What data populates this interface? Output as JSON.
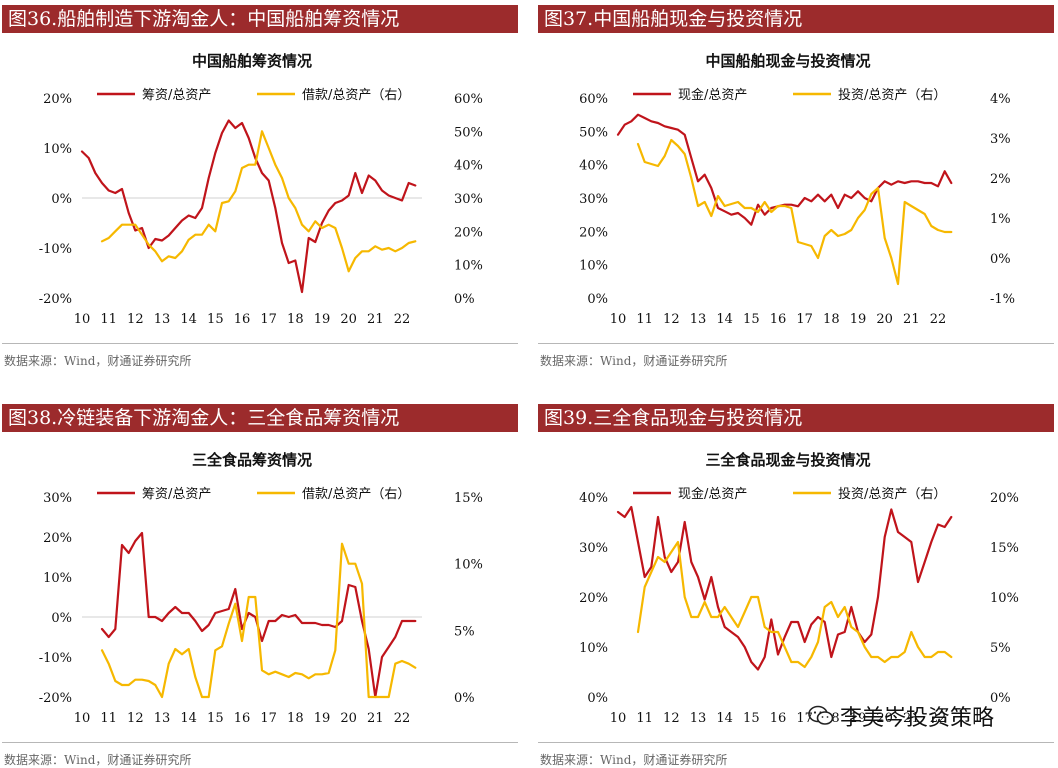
{
  "colors": {
    "header_bg": "#9c2b2c",
    "series_red": "#c0141b",
    "series_yellow": "#f6b800"
  },
  "panels": [
    {
      "header": "图36.船舶制造下游淘金人：中国船舶筹资情况",
      "source": "数据来源：Wind，财通证券研究所"
    },
    {
      "header": "图37.中国船舶现金与投资情况",
      "source": "数据来源：Wind，财通证券研究所"
    },
    {
      "header": "图38.冷链装备下游淘金人：三全食品筹资情况",
      "source": "数据来源：Wind，财通证券研究所"
    },
    {
      "header": "图39.三全食品现金与投资情况",
      "source": "数据来源：Wind，财通证券研究所"
    }
  ],
  "watermark": "李美岑投资策略",
  "chart_data": [
    {
      "type": "line",
      "title": "中国船舶筹资情况",
      "x_ticks": [
        "10",
        "11",
        "12",
        "13",
        "14",
        "15",
        "16",
        "17",
        "18",
        "19",
        "20",
        "21",
        "22"
      ],
      "x_range": [
        10,
        22.75
      ],
      "y_left": {
        "range": [
          -20,
          20
        ],
        "ticks": [
          "20%",
          "10%",
          "0%",
          "-10%",
          "-20%"
        ]
      },
      "y_right": {
        "range": [
          0,
          60
        ],
        "ticks": [
          "60%",
          "50%",
          "40%",
          "30%",
          "20%",
          "10%",
          "0%"
        ]
      },
      "series": [
        {
          "name": "筹资/总资产",
          "axis": "left",
          "color": "#c0141b",
          "x": [
            10,
            10.25,
            10.5,
            10.75,
            11,
            11.25,
            11.5,
            11.75,
            12,
            12.25,
            12.5,
            12.75,
            13,
            13.25,
            13.5,
            13.75,
            14,
            14.25,
            14.5,
            14.75,
            15,
            15.25,
            15.5,
            15.75,
            16,
            16.25,
            16.5,
            16.75,
            17,
            17.25,
            17.5,
            17.75,
            18,
            18.25,
            18.5,
            18.75,
            19,
            19.25,
            19.5,
            19.75,
            20,
            20.25,
            20.5,
            20.75,
            21,
            21.25,
            21.5,
            21.75,
            22,
            22.25,
            22.5
          ],
          "values": [
            9.3,
            8,
            5,
            3,
            1.5,
            1,
            1.8,
            -3,
            -6.5,
            -6,
            -10,
            -8.2,
            -8.5,
            -7.5,
            -6,
            -4.5,
            -3.5,
            -4,
            -2,
            4,
            9,
            13,
            15.5,
            14,
            15,
            12,
            8,
            5,
            3.5,
            -2,
            -9,
            -13,
            -12.5,
            -18.8,
            -8,
            -8.8,
            -5,
            -2.5,
            -1,
            -0.5,
            0.5,
            5,
            1,
            4.5,
            3.5,
            1.5,
            0.5,
            0,
            -0.5,
            3,
            2.5
          ]
        },
        {
          "name": "借款/总资产（右）",
          "axis": "right",
          "color": "#f6b800",
          "x": [
            10.75,
            11,
            11.25,
            11.5,
            11.75,
            12,
            12.25,
            12.5,
            12.75,
            13,
            13.25,
            13.5,
            13.75,
            14,
            14.25,
            14.5,
            14.75,
            15,
            15.25,
            15.5,
            15.75,
            16,
            16.25,
            16.5,
            16.75,
            17,
            17.25,
            17.5,
            17.75,
            18,
            18.25,
            18.5,
            18.75,
            19,
            19.25,
            19.5,
            19.75,
            20,
            20.25,
            20.5,
            20.75,
            21,
            21.25,
            21.5,
            21.75,
            22,
            22.25,
            22.5
          ],
          "values": [
            17,
            18,
            20,
            22,
            22,
            22,
            19,
            16,
            14,
            11,
            12.5,
            12,
            14,
            17.5,
            19,
            19,
            22,
            20,
            28.5,
            29,
            32,
            39,
            40,
            40,
            50,
            45,
            40,
            36,
            30,
            27,
            22,
            20,
            23,
            21,
            22,
            21,
            15,
            8,
            12,
            14,
            14,
            15.5,
            14.5,
            15,
            14,
            15,
            16.5,
            17
          ]
        }
      ]
    },
    {
      "type": "line",
      "title": "中国船舶现金与投资情况",
      "x_ticks": [
        "10",
        "11",
        "12",
        "13",
        "14",
        "15",
        "16",
        "17",
        "18",
        "19",
        "20",
        "21",
        "22"
      ],
      "x_range": [
        10,
        22.75
      ],
      "y_left": {
        "range": [
          0,
          60
        ],
        "ticks": [
          "60%",
          "50%",
          "40%",
          "30%",
          "20%",
          "10%",
          "0%"
        ]
      },
      "y_right": {
        "range": [
          -1,
          4
        ],
        "ticks": [
          "4%",
          "3%",
          "2%",
          "1%",
          "0%",
          "-1%"
        ]
      },
      "series": [
        {
          "name": "现金/总资产",
          "axis": "left",
          "color": "#c0141b",
          "x": [
            10,
            10.25,
            10.5,
            10.75,
            11,
            11.25,
            11.5,
            11.75,
            12,
            12.25,
            12.5,
            12.75,
            13,
            13.25,
            13.5,
            13.75,
            14,
            14.25,
            14.5,
            14.75,
            15,
            15.25,
            15.5,
            15.75,
            16,
            16.25,
            16.5,
            16.75,
            17,
            17.25,
            17.5,
            17.75,
            18,
            18.25,
            18.5,
            18.75,
            19,
            19.25,
            19.5,
            19.75,
            20,
            20.25,
            20.5,
            20.75,
            21,
            21.25,
            21.5,
            21.75,
            22,
            22.25,
            22.5
          ],
          "values": [
            49,
            52,
            53,
            55,
            54,
            53,
            52.5,
            51.5,
            51,
            50.5,
            49,
            42,
            35,
            37,
            33,
            27,
            26,
            25,
            25.5,
            24,
            22,
            28,
            25,
            27,
            27.5,
            28,
            28,
            27.5,
            30,
            29,
            31,
            29,
            31,
            27,
            31,
            30,
            32,
            30,
            29,
            33,
            35,
            34,
            35,
            34.5,
            35,
            35,
            34.5,
            34.5,
            33.5,
            38,
            34.5
          ]
        },
        {
          "name": "投资/总资产（右）",
          "axis": "right",
          "color": "#f6b800",
          "x": [
            10.75,
            11,
            11.25,
            11.5,
            11.75,
            12,
            12.25,
            12.5,
            12.75,
            13,
            13.25,
            13.5,
            13.75,
            14,
            14.25,
            14.5,
            14.75,
            15,
            15.25,
            15.5,
            15.75,
            16,
            16.25,
            16.5,
            16.75,
            17,
            17.25,
            17.5,
            17.75,
            18,
            18.25,
            18.5,
            18.75,
            19,
            19.25,
            19.5,
            19.75,
            20,
            20.25,
            20.5,
            20.75,
            21,
            21.25,
            21.5,
            21.75,
            22,
            22.25,
            22.5
          ],
          "values": [
            2.85,
            2.4,
            2.35,
            2.3,
            2.55,
            2.95,
            2.8,
            2.6,
            2,
            1.3,
            1.4,
            1.05,
            1.55,
            1.3,
            1.35,
            1.4,
            1.25,
            1.25,
            1.15,
            1.4,
            1.15,
            1.3,
            1.3,
            1.25,
            0.4,
            0.35,
            0.3,
            0,
            0.55,
            0.7,
            0.55,
            0.6,
            0.7,
            1.0,
            1.2,
            1.6,
            1.75,
            0.5,
            0,
            -0.65,
            1.4,
            1.3,
            1.2,
            1.1,
            0.8,
            0.7,
            0.65,
            0.65
          ]
        }
      ]
    },
    {
      "type": "line",
      "title": "三全食品筹资情况",
      "x_ticks": [
        "10",
        "11",
        "12",
        "13",
        "14",
        "15",
        "16",
        "17",
        "18",
        "19",
        "20",
        "21",
        "22"
      ],
      "x_range": [
        10,
        22.75
      ],
      "y_left": {
        "range": [
          -20,
          30
        ],
        "ticks": [
          "30%",
          "20%",
          "10%",
          "0%",
          "-10%",
          "-20%"
        ]
      },
      "y_right": {
        "range": [
          0,
          15
        ],
        "ticks": [
          "15%",
          "10%",
          "5%",
          "0%"
        ]
      },
      "series": [
        {
          "name": "筹资/总资产",
          "axis": "left",
          "color": "#c0141b",
          "x": [
            10.75,
            11,
            11.25,
            11.5,
            11.75,
            12,
            12.25,
            12.5,
            12.75,
            13,
            13.25,
            13.5,
            13.75,
            14,
            14.25,
            14.5,
            14.75,
            15,
            15.25,
            15.5,
            15.75,
            16,
            16.25,
            16.5,
            16.75,
            17,
            17.25,
            17.5,
            17.75,
            18,
            18.25,
            18.5,
            18.75,
            19,
            19.25,
            19.5,
            19.75,
            20,
            20.25,
            20.5,
            20.75,
            21,
            21.25,
            21.5,
            21.75,
            22,
            22.25,
            22.5
          ],
          "values": [
            -3,
            -5,
            -3,
            18,
            16,
            19,
            21,
            0,
            0,
            -1,
            1,
            2.5,
            1,
            1,
            -1,
            -3.5,
            -2,
            1,
            1.5,
            2,
            7,
            -3,
            1,
            0,
            -6,
            -1,
            -1,
            0.5,
            0,
            0.5,
            -1.5,
            -1.5,
            -1.5,
            -2,
            -2,
            -2.5,
            -1,
            8,
            7.5,
            -1,
            -8,
            -20,
            -10,
            -7.5,
            -5,
            -1,
            -1,
            -1
          ]
        },
        {
          "name": "借款/总资产（右）",
          "axis": "right",
          "color": "#f6b800",
          "x": [
            10.75,
            11,
            11.25,
            11.5,
            11.75,
            12,
            12.25,
            12.5,
            12.75,
            13,
            13.25,
            13.5,
            13.75,
            14,
            14.25,
            14.5,
            14.75,
            15,
            15.25,
            15.5,
            15.75,
            16,
            16.25,
            16.5,
            16.75,
            17,
            17.25,
            17.5,
            17.75,
            18,
            18.25,
            18.5,
            18.75,
            19,
            19.25,
            19.5,
            19.75,
            20,
            20.25,
            20.5,
            20.75,
            21,
            21.25,
            21.5,
            21.75,
            22,
            22.25,
            22.5
          ],
          "values": [
            3.5,
            2.5,
            1.2,
            0.9,
            0.9,
            1.3,
            1.3,
            1.2,
            0.9,
            0,
            2.5,
            3.6,
            3.2,
            3.6,
            1.5,
            0,
            0,
            3.5,
            3.8,
            5.5,
            7,
            4.2,
            7.5,
            7.5,
            2,
            1.7,
            1.9,
            1.7,
            1.5,
            1.8,
            1.7,
            1.4,
            1.7,
            1.7,
            1.8,
            3.5,
            11.5,
            10,
            10,
            8.5,
            0,
            0,
            0,
            0,
            2.5,
            2.7,
            2.5,
            2.2
          ]
        }
      ]
    },
    {
      "type": "line",
      "title": "三全食品现金与投资情况",
      "x_ticks": [
        "10",
        "11",
        "12",
        "13",
        "14",
        "15",
        "16",
        "17",
        "18",
        "19",
        "20",
        "21",
        "22"
      ],
      "x_range": [
        10,
        22.75
      ],
      "y_left": {
        "range": [
          0,
          40
        ],
        "ticks": [
          "40%",
          "30%",
          "20%",
          "10%",
          "0%"
        ]
      },
      "y_right": {
        "range": [
          0,
          20
        ],
        "ticks": [
          "20%",
          "15%",
          "10%",
          "5%",
          "0%"
        ]
      },
      "series": [
        {
          "name": "现金/总资产",
          "axis": "left",
          "color": "#c0141b",
          "x": [
            10,
            10.25,
            10.5,
            10.75,
            11,
            11.25,
            11.5,
            11.75,
            12,
            12.25,
            12.5,
            12.75,
            13,
            13.25,
            13.5,
            13.75,
            14,
            14.25,
            14.5,
            14.75,
            15,
            15.25,
            15.5,
            15.75,
            16,
            16.25,
            16.5,
            16.75,
            17,
            17.25,
            17.5,
            17.75,
            18,
            18.25,
            18.5,
            18.75,
            19,
            19.25,
            19.5,
            19.75,
            20,
            20.25,
            20.5,
            20.75,
            21,
            21.25,
            21.5,
            21.75,
            22,
            22.25,
            22.5
          ],
          "values": [
            37,
            36,
            38,
            31,
            24,
            26,
            36,
            28,
            25,
            27,
            35,
            27,
            24,
            19.5,
            24,
            18,
            14,
            13,
            12,
            10,
            7,
            5.5,
            8,
            15.5,
            8.5,
            12,
            15,
            15,
            11,
            14.5,
            16,
            15,
            8,
            12.5,
            13,
            18,
            13,
            11,
            12.5,
            20,
            32,
            37.5,
            33,
            32,
            31,
            23,
            27,
            31,
            34.5,
            34,
            36
          ]
        },
        {
          "name": "投资/总资产（右）",
          "axis": "right",
          "color": "#f6b800",
          "x": [
            10.75,
            11,
            11.25,
            11.5,
            11.75,
            12,
            12.25,
            12.5,
            12.75,
            13,
            13.25,
            13.5,
            13.75,
            14,
            14.25,
            14.5,
            14.75,
            15,
            15.25,
            15.5,
            15.75,
            16,
            16.25,
            16.5,
            16.75,
            17,
            17.25,
            17.5,
            17.75,
            18,
            18.25,
            18.5,
            18.75,
            19,
            19.25,
            19.5,
            19.75,
            20,
            20.25,
            20.5,
            20.75,
            21,
            21.25,
            21.5,
            21.75,
            22,
            22.25,
            22.5
          ],
          "values": [
            6.5,
            11,
            12.5,
            14,
            13.5,
            14.5,
            15.5,
            10,
            8,
            8,
            9.5,
            8,
            8,
            9,
            8,
            7,
            8.5,
            10,
            10,
            7,
            6.5,
            6.5,
            5,
            3.5,
            3.5,
            3,
            4,
            5.5,
            9,
            9.5,
            8,
            9,
            7,
            6.5,
            5,
            4,
            4,
            3.5,
            4,
            4,
            4.5,
            6.5,
            5,
            4,
            4,
            4.5,
            4.5,
            4
          ]
        }
      ]
    }
  ]
}
